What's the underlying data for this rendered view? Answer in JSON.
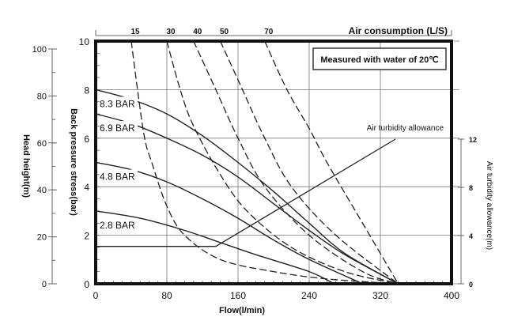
{
  "chart_data": {
    "type": "line",
    "title": "",
    "note": "Measured with water of 20℃",
    "xlabel": "Flow(l/min)",
    "ylabel": "Back pressure stress(bar)",
    "ylabel_head": "Head height(m)",
    "ylabel_right": "Air turbidity allowance(m)",
    "top_axis_label": "Air consumption (L/S)",
    "xlim": [
      0,
      400
    ],
    "ylim": [
      0,
      10
    ],
    "head_lim": [
      0,
      100
    ],
    "right_lim": [
      0,
      12
    ],
    "x_ticks": [
      "0",
      "80",
      "160",
      "240",
      "320",
      "400"
    ],
    "y_ticks": [
      "0",
      "2",
      "4",
      "6",
      "8",
      "10"
    ],
    "head_ticks": [
      "0",
      "20",
      "40",
      "60",
      "80",
      "100"
    ],
    "right_ticks": [
      "0",
      "4",
      "8",
      "12"
    ],
    "grid": true,
    "pressure_series": [
      {
        "name": "8.3 BAR",
        "points": [
          [
            0,
            8
          ],
          [
            40,
            7.6
          ],
          [
            80,
            7
          ],
          [
            120,
            6.1
          ],
          [
            160,
            5
          ],
          [
            200,
            3.8
          ],
          [
            240,
            2.5
          ],
          [
            280,
            1.25
          ],
          [
            340,
            0
          ]
        ]
      },
      {
        "name": "6.9 BAR",
        "points": [
          [
            0,
            7
          ],
          [
            40,
            6.6
          ],
          [
            80,
            6
          ],
          [
            120,
            5.3
          ],
          [
            160,
            4.4
          ],
          [
            200,
            3.3
          ],
          [
            240,
            2.2
          ],
          [
            280,
            1.2
          ],
          [
            340,
            0
          ]
        ]
      },
      {
        "name": "4.8 BAR",
        "points": [
          [
            0,
            5
          ],
          [
            40,
            4.7
          ],
          [
            80,
            4.2
          ],
          [
            120,
            3.5
          ],
          [
            160,
            2.7
          ],
          [
            200,
            1.8
          ],
          [
            240,
            1
          ],
          [
            300,
            0
          ]
        ]
      },
      {
        "name": "2.8 BAR",
        "points": [
          [
            0,
            3
          ],
          [
            50,
            2.7
          ],
          [
            100,
            2.2
          ],
          [
            140,
            1.7
          ],
          [
            180,
            1.2
          ],
          [
            240,
            0.5
          ],
          [
            268,
            0
          ]
        ]
      }
    ],
    "air_consumption_series": [
      {
        "name": "15",
        "points": [
          [
            40,
            10
          ],
          [
            47,
            8
          ],
          [
            55,
            6
          ],
          [
            63,
            5
          ],
          [
            80,
            3.2
          ],
          [
            100,
            2
          ],
          [
            140,
            1
          ],
          [
            200,
            0.5
          ],
          [
            260,
            0.2
          ],
          [
            340,
            0
          ]
        ]
      },
      {
        "name": "30",
        "points": [
          [
            80,
            10
          ],
          [
            95,
            8
          ],
          [
            110,
            6.5
          ],
          [
            140,
            4.5
          ],
          [
            170,
            3
          ],
          [
            220,
            1.5
          ],
          [
            280,
            0.5
          ],
          [
            340,
            0
          ]
        ]
      },
      {
        "name": "40",
        "points": [
          [
            110,
            10
          ],
          [
            135,
            8
          ],
          [
            160,
            6
          ],
          [
            190,
            4
          ],
          [
            240,
            2
          ],
          [
            300,
            0.5
          ],
          [
            340,
            0
          ]
        ]
      },
      {
        "name": "50",
        "points": [
          [
            140,
            10
          ],
          [
            165,
            8
          ],
          [
            190,
            6
          ],
          [
            220,
            4
          ],
          [
            270,
            2
          ],
          [
            340,
            0
          ]
        ]
      },
      {
        "name": "70",
        "points": [
          [
            190,
            10
          ],
          [
            215,
            8
          ],
          [
            240,
            6.4
          ],
          [
            260,
            5
          ],
          [
            300,
            2.5
          ],
          [
            340,
            0
          ]
        ]
      }
    ],
    "turbidity_series": {
      "name": "Air turbidity allowance",
      "points": [
        [
          0,
          3.1
        ],
        [
          135,
          3.1
        ],
        [
          337,
          12
        ]
      ]
    }
  }
}
